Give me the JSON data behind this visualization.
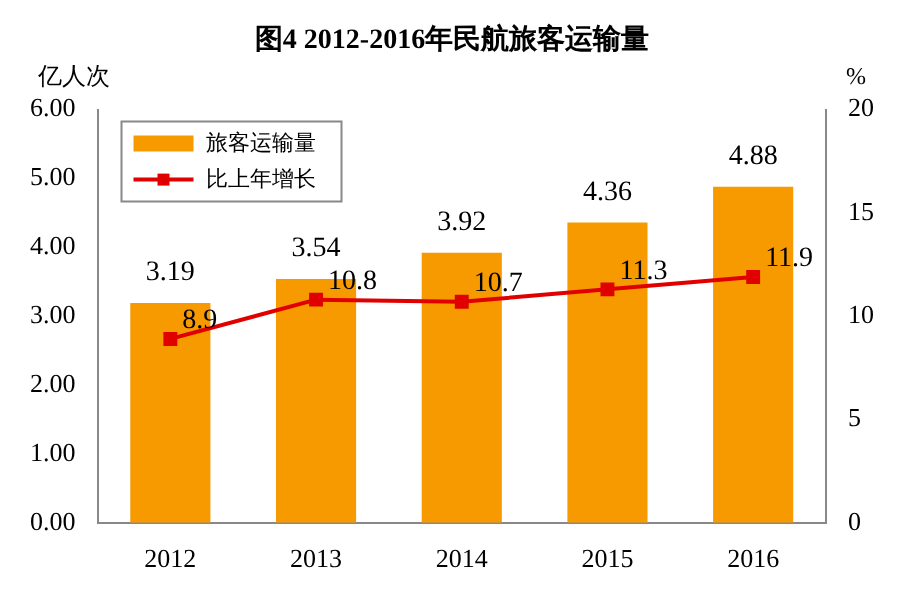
{
  "chart_data": {
    "type": "bar",
    "title": "图4 2012-2016年民航旅客运输量",
    "ylabel": "亿人次",
    "y2label": "%",
    "categories": [
      "2012",
      "2013",
      "2014",
      "2015",
      "2016"
    ],
    "series": [
      {
        "name": "旅客运输量",
        "color": "#f79a00",
        "values": [
          3.19,
          3.54,
          3.92,
          4.36,
          4.88
        ]
      },
      {
        "name": "比上年增长",
        "type": "line",
        "axis": "y2",
        "color": "#e00000",
        "marker": "square",
        "values": [
          8.9,
          10.8,
          10.7,
          11.3,
          11.9
        ]
      }
    ],
    "ylim": [
      0,
      6
    ],
    "yticks": [
      {
        "value": 0,
        "label": "0.00"
      },
      {
        "value": 1,
        "label": "1.00"
      },
      {
        "value": 2,
        "label": "2.00"
      },
      {
        "value": 3,
        "label": "3.00"
      },
      {
        "value": 4,
        "label": "4.00"
      },
      {
        "value": 5,
        "label": "5.00"
      },
      {
        "value": 6,
        "label": "6.00"
      }
    ],
    "y2lim": [
      0,
      20
    ],
    "y2ticks": [
      0,
      5,
      10,
      15,
      20
    ],
    "grid": false,
    "legend": "top left",
    "data_labels": true
  }
}
